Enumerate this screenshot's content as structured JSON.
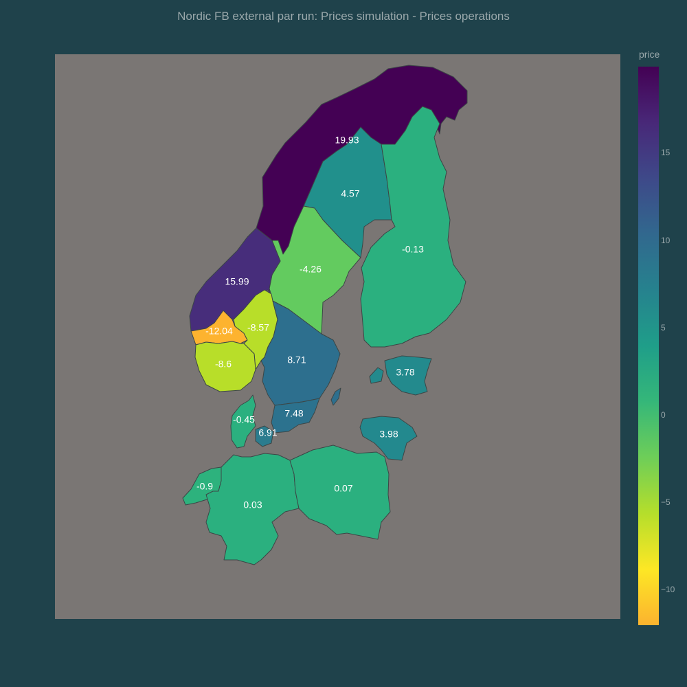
{
  "title": "Nordic FB external par run: Prices simulation - Prices operations",
  "colorbar": {
    "title": "price",
    "ticks": [
      {
        "label": "15",
        "value": 15
      },
      {
        "label": "10",
        "value": 10
      },
      {
        "label": "5",
        "value": 5
      },
      {
        "label": "0",
        "value": 0
      },
      {
        "label": "−5",
        "value": -5
      },
      {
        "label": "−10",
        "value": -10
      }
    ],
    "range": [
      -12.04,
      19.93
    ],
    "colorscale": [
      "#440154",
      "#482878",
      "#3e4989",
      "#31688e",
      "#26828e",
      "#1f9e89",
      "#35b779",
      "#6ece58",
      "#b5de2b",
      "#fde725",
      "#fbb32f"
    ]
  },
  "regions": [
    {
      "id": "NO4",
      "value": "19.93",
      "color": "#440154"
    },
    {
      "id": "SE1",
      "value": "4.57",
      "color": "#21908c"
    },
    {
      "id": "FI",
      "value": "-0.13",
      "color": "#2bb07f"
    },
    {
      "id": "SE2",
      "value": "-4.26",
      "color": "#63cb5f"
    },
    {
      "id": "NO3",
      "value": "15.99",
      "color": "#472d7b"
    },
    {
      "id": "NO5",
      "value": "-12.04",
      "color": "#fdb32f"
    },
    {
      "id": "NO1",
      "value": "-8.57",
      "color": "#b8de29"
    },
    {
      "id": "NO2",
      "value": "-8.6",
      "color": "#b8de29"
    },
    {
      "id": "SE3",
      "value": "8.71",
      "color": "#2d6f8e"
    },
    {
      "id": "EE",
      "value": "3.78",
      "color": "#238a8d"
    },
    {
      "id": "SE4",
      "value": "7.48",
      "color": "#2c728e"
    },
    {
      "id": "DK1",
      "value": "-0.45",
      "color": "#2bb07f"
    },
    {
      "id": "DK2",
      "value": "6.91",
      "color": "#2b7c8e"
    },
    {
      "id": "LT",
      "value": "3.98",
      "color": "#23898e"
    },
    {
      "id": "NL",
      "value": "-0.9",
      "color": "#2db27d"
    },
    {
      "id": "DE",
      "value": "0.03",
      "color": "#2bb07f"
    },
    {
      "id": "PL",
      "value": "0.07",
      "color": "#2bb07f"
    }
  ]
}
